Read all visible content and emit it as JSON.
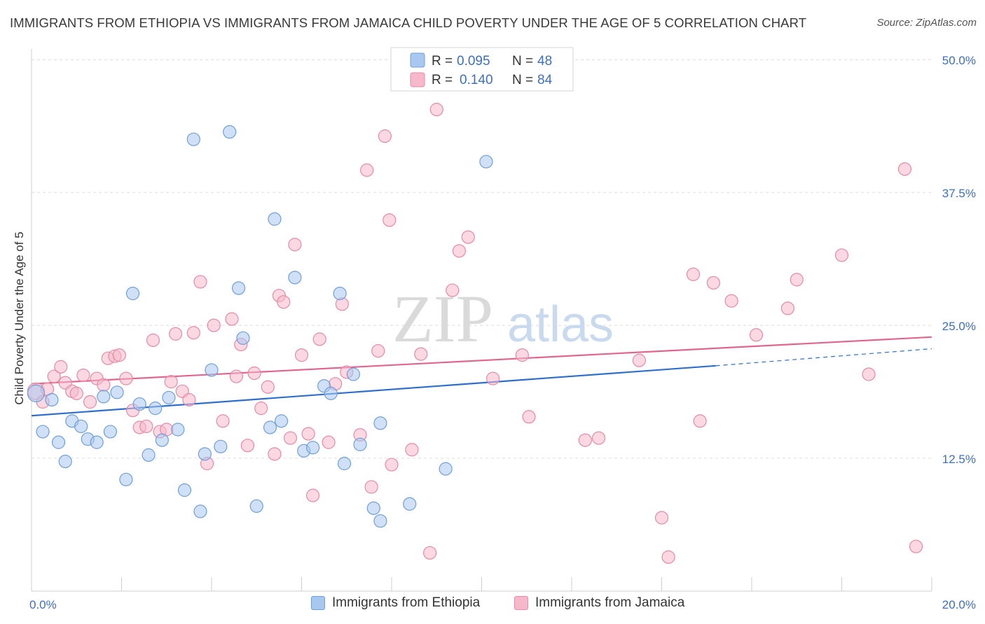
{
  "header": {
    "title": "IMMIGRANTS FROM ETHIOPIA VS IMMIGRANTS FROM JAMAICA CHILD POVERTY UNDER THE AGE OF 5 CORRELATION CHART",
    "source": "Source: ZipAtlas.com"
  },
  "watermark": {
    "zip": "ZIP",
    "atlas": "atlas"
  },
  "colors": {
    "ethiopia_fill": "#a9c8f0",
    "ethiopia_stroke": "#6f9fd8",
    "ethiopia_line": "#2e6fce",
    "jamaica_fill": "#f7b8cb",
    "jamaica_stroke": "#e58aa7",
    "jamaica_line": "#e0668f",
    "tick_label": "#3d6fc4",
    "grid": "#dcdcdc"
  },
  "chart_data": {
    "type": "scatter",
    "title": "IMMIGRANTS FROM ETHIOPIA VS IMMIGRANTS FROM JAMAICA CHILD POVERTY UNDER THE AGE OF 5 CORRELATION CHART",
    "xlabel": "",
    "ylabel": "Child Poverty Under the Age of 5",
    "xlim": [
      0,
      20
    ],
    "ylim": [
      0,
      51
    ],
    "x_tick_labels": [
      {
        "value": 0,
        "label": "0.0%"
      },
      {
        "value": 20,
        "label": "20.0%"
      }
    ],
    "y_tick_labels": [
      {
        "value": 12.5,
        "label": "12.5%"
      },
      {
        "value": 25,
        "label": "25.0%"
      },
      {
        "value": 37.5,
        "label": "37.5%"
      },
      {
        "value": 50,
        "label": "50.0%"
      }
    ],
    "grid": true,
    "legend_position": "top-center",
    "series": [
      {
        "name": "Immigrants from Ethiopia",
        "r_label": "R =",
        "r_value": "0.095",
        "n_label": "N =",
        "n_value": "48",
        "trend": {
          "x0": 0,
          "y0": 16.5,
          "x1": 15.2,
          "y1": 21.2,
          "dash_to_x": 20,
          "dash_to_y": 22.8
        },
        "points": [
          [
            0.1,
            18.6
          ],
          [
            0.25,
            15.0
          ],
          [
            0.45,
            18.0
          ],
          [
            0.6,
            14.0
          ],
          [
            0.75,
            12.2
          ],
          [
            0.9,
            16.0
          ],
          [
            1.1,
            15.5
          ],
          [
            1.25,
            14.3
          ],
          [
            1.45,
            14.0
          ],
          [
            1.6,
            18.3
          ],
          [
            1.75,
            15.0
          ],
          [
            1.9,
            18.7
          ],
          [
            2.1,
            10.5
          ],
          [
            2.25,
            28.0
          ],
          [
            2.4,
            17.6
          ],
          [
            2.6,
            12.8
          ],
          [
            2.75,
            17.2
          ],
          [
            2.9,
            14.2
          ],
          [
            3.05,
            18.2
          ],
          [
            3.25,
            15.2
          ],
          [
            3.4,
            9.5
          ],
          [
            3.6,
            42.5
          ],
          [
            3.75,
            7.5
          ],
          [
            3.85,
            12.9
          ],
          [
            4.0,
            20.8
          ],
          [
            4.2,
            13.6
          ],
          [
            4.4,
            43.2
          ],
          [
            4.6,
            28.5
          ],
          [
            4.7,
            23.8
          ],
          [
            5.0,
            8.0
          ],
          [
            5.3,
            15.4
          ],
          [
            5.4,
            35.0
          ],
          [
            5.55,
            16.0
          ],
          [
            5.85,
            29.5
          ],
          [
            6.05,
            13.2
          ],
          [
            6.25,
            13.5
          ],
          [
            6.5,
            19.3
          ],
          [
            6.65,
            18.6
          ],
          [
            6.85,
            28.0
          ],
          [
            6.95,
            12.0
          ],
          [
            7.15,
            20.4
          ],
          [
            7.3,
            13.8
          ],
          [
            7.6,
            7.8
          ],
          [
            7.75,
            6.6
          ],
          [
            7.75,
            15.8
          ],
          [
            8.4,
            8.2
          ],
          [
            9.2,
            11.5
          ],
          [
            10.1,
            40.4
          ]
        ]
      },
      {
        "name": "Immigrants from Jamaica",
        "r_label": "R =",
        "r_value": "0.140",
        "n_label": "N =",
        "n_value": "84",
        "trend": {
          "x0": 0,
          "y0": 19.5,
          "x1": 20,
          "y1": 23.9
        },
        "points": [
          [
            0.1,
            18.8
          ],
          [
            0.25,
            17.8
          ],
          [
            0.35,
            19.0
          ],
          [
            0.5,
            20.2
          ],
          [
            0.65,
            21.1
          ],
          [
            0.75,
            19.6
          ],
          [
            0.9,
            18.8
          ],
          [
            1.0,
            18.6
          ],
          [
            1.15,
            20.3
          ],
          [
            1.3,
            17.8
          ],
          [
            1.45,
            20.0
          ],
          [
            1.6,
            19.4
          ],
          [
            1.7,
            21.9
          ],
          [
            1.85,
            22.1
          ],
          [
            1.95,
            22.2
          ],
          [
            2.1,
            20.0
          ],
          [
            2.25,
            17.0
          ],
          [
            2.4,
            15.4
          ],
          [
            2.55,
            15.5
          ],
          [
            2.7,
            23.6
          ],
          [
            2.85,
            15.0
          ],
          [
            3.0,
            15.2
          ],
          [
            3.1,
            19.7
          ],
          [
            3.2,
            24.2
          ],
          [
            3.35,
            18.8
          ],
          [
            3.5,
            18.0
          ],
          [
            3.6,
            24.3
          ],
          [
            3.75,
            29.1
          ],
          [
            3.9,
            12.0
          ],
          [
            4.05,
            25.0
          ],
          [
            4.25,
            16.0
          ],
          [
            4.45,
            25.6
          ],
          [
            4.55,
            20.2
          ],
          [
            4.65,
            23.2
          ],
          [
            4.8,
            13.7
          ],
          [
            4.95,
            20.5
          ],
          [
            5.1,
            17.2
          ],
          [
            5.25,
            19.2
          ],
          [
            5.4,
            12.9
          ],
          [
            5.5,
            27.8
          ],
          [
            5.6,
            27.2
          ],
          [
            5.75,
            14.4
          ],
          [
            5.85,
            32.6
          ],
          [
            6.0,
            22.2
          ],
          [
            6.15,
            14.8
          ],
          [
            6.25,
            9.0
          ],
          [
            6.4,
            23.7
          ],
          [
            6.6,
            14.0
          ],
          [
            6.75,
            19.5
          ],
          [
            6.9,
            27.0
          ],
          [
            7.0,
            20.6
          ],
          [
            7.3,
            14.7
          ],
          [
            7.45,
            39.6
          ],
          [
            7.55,
            9.8
          ],
          [
            7.7,
            22.6
          ],
          [
            7.85,
            42.8
          ],
          [
            7.95,
            34.9
          ],
          [
            8.0,
            11.9
          ],
          [
            8.45,
            13.3
          ],
          [
            8.65,
            22.3
          ],
          [
            8.85,
            3.6
          ],
          [
            9.0,
            45.3
          ],
          [
            9.35,
            28.3
          ],
          [
            9.5,
            32.0
          ],
          [
            9.7,
            33.3
          ],
          [
            10.25,
            20.0
          ],
          [
            10.9,
            22.2
          ],
          [
            11.05,
            16.4
          ],
          [
            12.3,
            14.2
          ],
          [
            12.6,
            14.4
          ],
          [
            13.5,
            21.7
          ],
          [
            14.0,
            6.9
          ],
          [
            14.15,
            3.2
          ],
          [
            14.7,
            29.8
          ],
          [
            14.85,
            16.0
          ],
          [
            15.15,
            29.0
          ],
          [
            15.55,
            27.3
          ],
          [
            16.1,
            24.1
          ],
          [
            16.8,
            26.6
          ],
          [
            17.0,
            29.3
          ],
          [
            18.0,
            31.6
          ],
          [
            18.6,
            20.4
          ],
          [
            19.4,
            39.7
          ],
          [
            19.65,
            4.2
          ]
        ]
      }
    ]
  }
}
